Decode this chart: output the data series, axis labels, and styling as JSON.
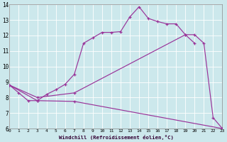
{
  "background_color": "#cce8ec",
  "line_color": "#993399",
  "grid_color": "#b0d8dc",
  "xlabel": "Windchill (Refroidissement éolien,°C)",
  "xlim": [
    0,
    23
  ],
  "ylim": [
    6,
    14
  ],
  "xtick_labels": [
    "0",
    "1",
    "2",
    "3",
    "4",
    "5",
    "6",
    "7",
    "8",
    "9",
    "10",
    "11",
    "12",
    "13",
    "14",
    "15",
    "16",
    "17",
    "18",
    "19",
    "20",
    "21",
    "22",
    "23"
  ],
  "ytick_labels": [
    "6",
    "7",
    "8",
    "9",
    "10",
    "11",
    "12",
    "13",
    "14"
  ],
  "curve1_x": [
    0,
    1,
    2,
    3,
    4,
    5,
    6,
    7,
    8,
    9,
    10,
    11,
    12,
    13,
    14,
    15,
    16,
    17,
    18,
    19,
    20
  ],
  "curve1_y": [
    8.8,
    8.3,
    7.8,
    7.8,
    8.2,
    8.5,
    8.85,
    9.5,
    11.5,
    11.85,
    12.2,
    12.2,
    12.25,
    13.2,
    13.85,
    13.1,
    12.9,
    12.75,
    12.75,
    12.05,
    11.5
  ],
  "curve2_x": [
    0,
    3,
    7,
    19,
    20,
    21,
    22,
    23
  ],
  "curve2_y": [
    8.8,
    8.0,
    8.3,
    12.05,
    12.05,
    11.5,
    6.7,
    6.0
  ],
  "curve3_x": [
    0,
    3,
    7,
    23
  ],
  "curve3_y": [
    8.8,
    7.8,
    7.75,
    6.0
  ]
}
